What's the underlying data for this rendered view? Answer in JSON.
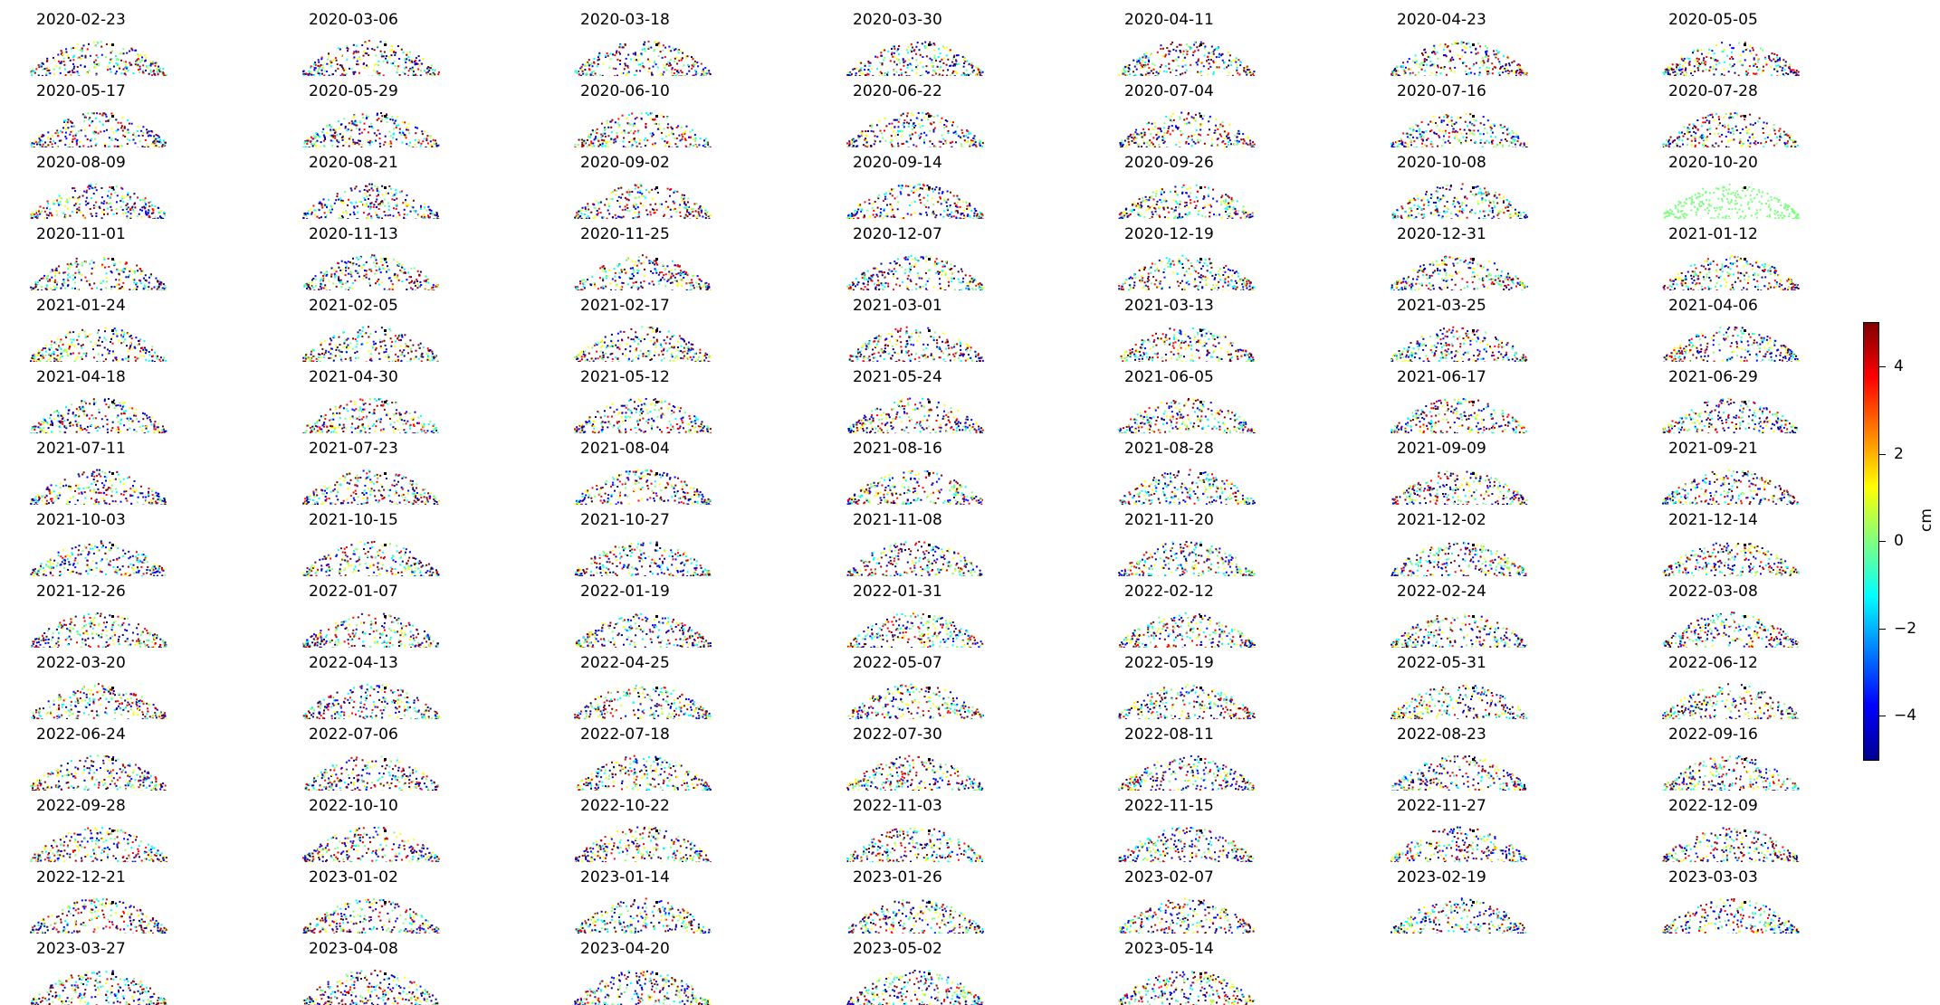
{
  "figure": {
    "panels": [
      "2020-02-23",
      "2020-03-06",
      "2020-03-18",
      "2020-03-30",
      "2020-04-11",
      "2020-04-23",
      "2020-05-05",
      "2020-05-17",
      "2020-05-29",
      "2020-06-10",
      "2020-06-22",
      "2020-07-04",
      "2020-07-16",
      "2020-07-28",
      "2020-08-09",
      "2020-08-21",
      "2020-09-02",
      "2020-09-14",
      "2020-09-26",
      "2020-10-08",
      "2020-10-20",
      "2020-11-01",
      "2020-11-13",
      "2020-11-25",
      "2020-12-07",
      "2020-12-19",
      "2020-12-31",
      "2021-01-12",
      "2021-01-24",
      "2021-02-05",
      "2021-02-17",
      "2021-03-01",
      "2021-03-13",
      "2021-03-25",
      "2021-04-06",
      "2021-04-18",
      "2021-04-30",
      "2021-05-12",
      "2021-05-24",
      "2021-06-05",
      "2021-06-17",
      "2021-06-29",
      "2021-07-11",
      "2021-07-23",
      "2021-08-04",
      "2021-08-16",
      "2021-08-28",
      "2021-09-09",
      "2021-09-21",
      "2021-10-03",
      "2021-10-15",
      "2021-10-27",
      "2021-11-08",
      "2021-11-20",
      "2021-12-02",
      "2021-12-14",
      "2021-12-26",
      "2022-01-07",
      "2022-01-19",
      "2022-01-31",
      "2022-02-12",
      "2022-02-24",
      "2022-03-08",
      "2022-03-20",
      "2022-04-13",
      "2022-04-25",
      "2022-05-07",
      "2022-05-19",
      "2022-05-31",
      "2022-06-12",
      "2022-06-24",
      "2022-07-06",
      "2022-07-18",
      "2022-07-30",
      "2022-08-11",
      "2022-08-23",
      "2022-09-16",
      "2022-09-28",
      "2022-10-10",
      "2022-10-22",
      "2022-11-03",
      "2022-11-15",
      "2022-11-27",
      "2022-12-09",
      "2022-12-21",
      "2023-01-02",
      "2023-01-14",
      "2023-01-26",
      "2023-02-07",
      "2023-02-19",
      "2023-03-03",
      "2023-03-27",
      "2023-04-08",
      "2023-04-20",
      "2023-05-02",
      "2023-05-14"
    ]
  },
  "chart_data": {
    "type": "heatmap",
    "description_of_panels": "small multiples",
    "colormap": "jet",
    "vmin": -5,
    "vmax": 5,
    "colorbar": {
      "label": "cm",
      "ticks": [
        4,
        2,
        0,
        -2,
        -4
      ],
      "tick_labels": [
        "4",
        "2",
        "0",
        "−2",
        "−4"
      ]
    },
    "colors": {
      "dark_blue": "#00008f",
      "blue": "#0000ff",
      "cyan": "#00ffff",
      "green": "#7fff7f",
      "yellow": "#ffff00",
      "red": "#ff0000",
      "dark_red": "#800000"
    }
  }
}
